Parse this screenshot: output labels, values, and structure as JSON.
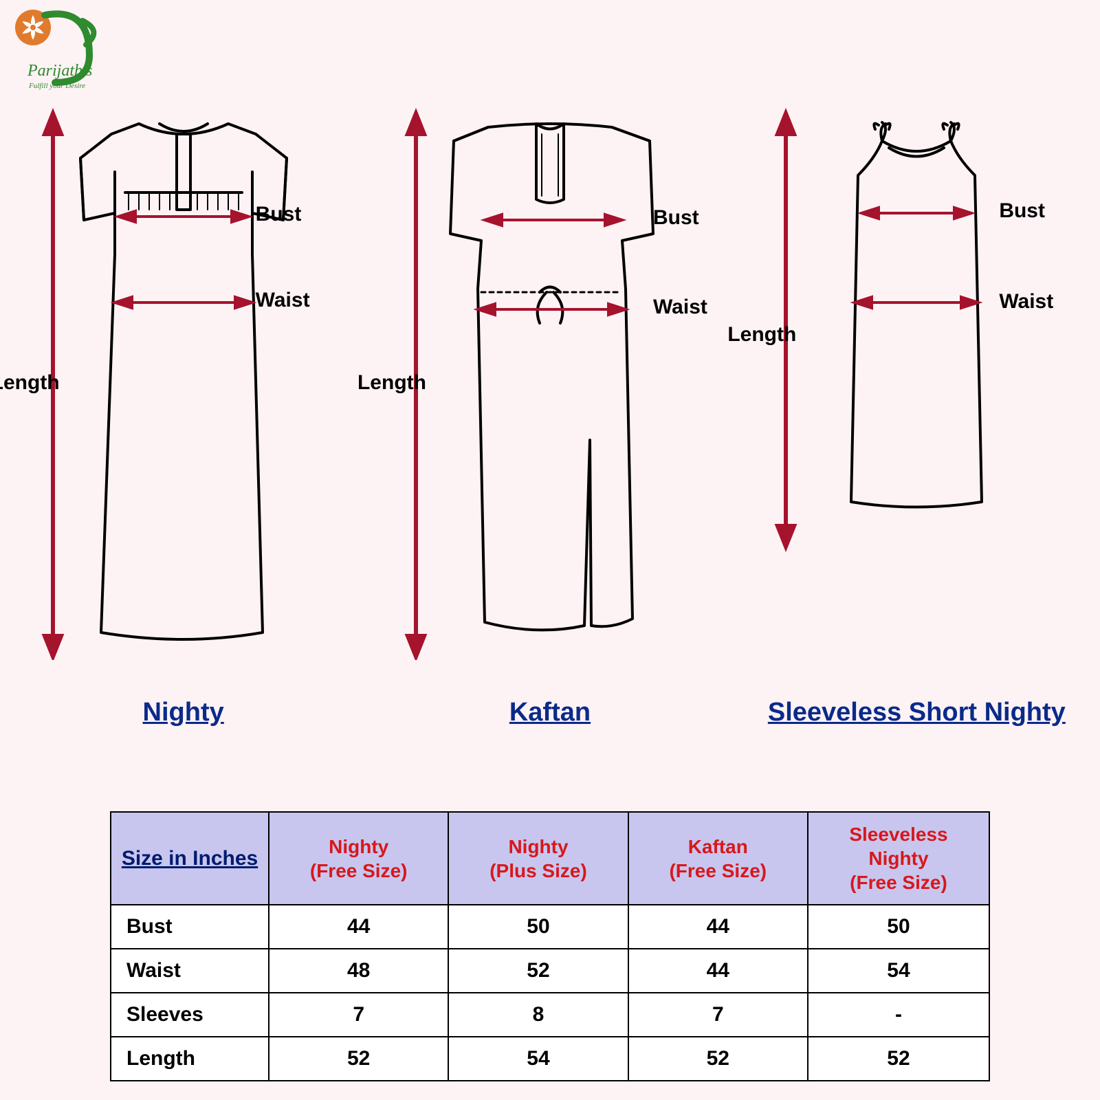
{
  "brand": {
    "name": "Parijath's",
    "tagline": "Fulfill your Desire"
  },
  "colors": {
    "background": "#fdf2f4",
    "arrow": "#a5132c",
    "outline": "#000000",
    "title": "#0a2a8a",
    "table_header_bg": "#c8c6ee",
    "table_header_red": "#d8171b",
    "table_header_blue": "#001a6e",
    "logo_green": "#2e8b2e",
    "logo_orange": "#e07b2e"
  },
  "garments": [
    {
      "title": "Nighty",
      "labels": {
        "length": "Length",
        "bust": "Bust",
        "waist": "Waist"
      }
    },
    {
      "title": "Kaftan",
      "labels": {
        "length": "Length",
        "bust": "Bust",
        "waist": "Waist"
      }
    },
    {
      "title": "Sleeveless Short Nighty",
      "labels": {
        "length": "Length",
        "bust": "Bust",
        "waist": "Waist"
      }
    }
  ],
  "table": {
    "header_rowhead": "Size in Inches",
    "columns": [
      "Nighty\n(Free Size)",
      "Nighty\n(Plus Size)",
      "Kaftan\n(Free Size)",
      "Sleeveless\nNighty\n(Free Size)"
    ],
    "rows": [
      {
        "label": "Bust",
        "values": [
          "44",
          "50",
          "44",
          "50"
        ]
      },
      {
        "label": "Waist",
        "values": [
          "48",
          "52",
          "44",
          "54"
        ]
      },
      {
        "label": "Sleeves",
        "values": [
          "7",
          "8",
          "7",
          "-"
        ]
      },
      {
        "label": "Length",
        "values": [
          "52",
          "54",
          "52",
          "52"
        ]
      }
    ]
  }
}
